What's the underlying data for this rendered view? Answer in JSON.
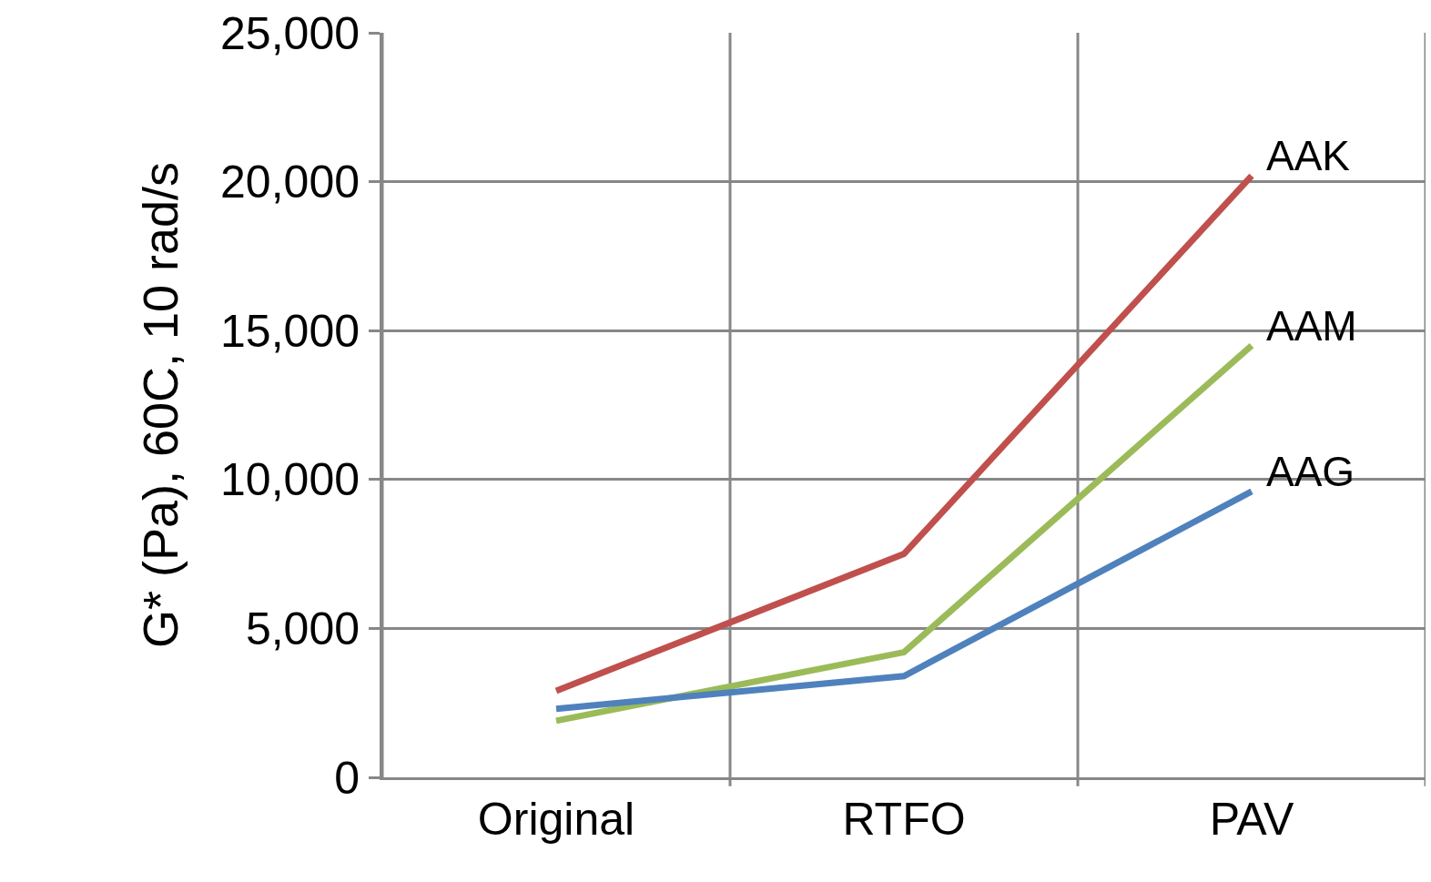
{
  "chart_data": {
    "type": "line",
    "ylabel": "G* (Pa), 60C, 10 rad/s",
    "categories": [
      "Original",
      "RTFO",
      "PAV"
    ],
    "series": [
      {
        "name": "AAK",
        "color": "#c0504d",
        "values": [
          2900,
          7500,
          20200
        ]
      },
      {
        "name": "AAM",
        "color": "#9bbb59",
        "values": [
          1900,
          4200,
          14500
        ]
      },
      {
        "name": "AAG",
        "color": "#4f81bd",
        "values": [
          2300,
          3400,
          9600
        ]
      }
    ],
    "ylim": [
      0,
      25000
    ],
    "yticks": [
      {
        "value": 0,
        "label": "0"
      },
      {
        "value": 5000,
        "label": "5,000"
      },
      {
        "value": 10000,
        "label": "10,000"
      },
      {
        "value": 15000,
        "label": "15,000"
      },
      {
        "value": 20000,
        "label": "20,000"
      },
      {
        "value": 25000,
        "label": "25,000"
      }
    ],
    "grid": true,
    "legend": false,
    "marker": "none",
    "line_style": "solid"
  }
}
